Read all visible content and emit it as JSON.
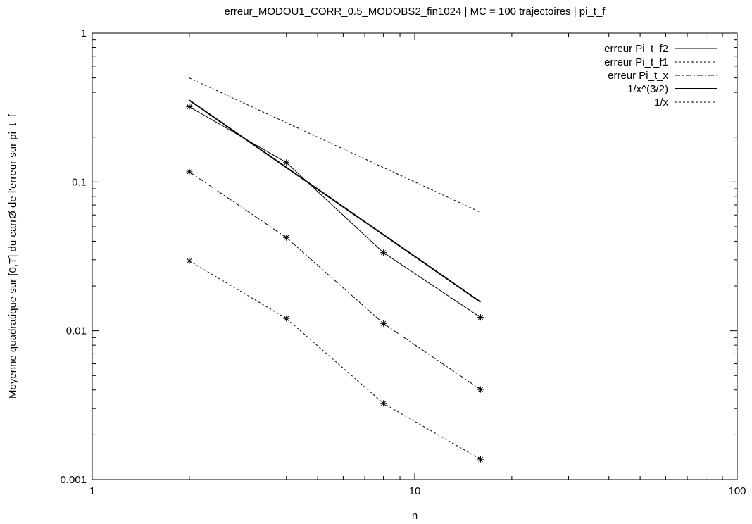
{
  "chart_data": {
    "type": "line",
    "title": "erreur_MODOU1_CORR_0.5_MODOBS2_fin1024 | MC = 100 trajectoires | pi_t_f",
    "xlabel": "n",
    "ylabel": "Moyenne quadratique sur [0,T] du carrØ de l'erreur sur pi_t_f",
    "xscale": "log",
    "yscale": "log",
    "xlim": [
      1,
      100
    ],
    "ylim": [
      0.001,
      1
    ],
    "xticks": [
      {
        "value": 1,
        "label": "1"
      },
      {
        "value": 10,
        "label": "10"
      },
      {
        "value": 100,
        "label": "100"
      }
    ],
    "yticks": [
      {
        "value": 0.001,
        "label": "0.001"
      },
      {
        "value": 0.01,
        "label": "0.01"
      },
      {
        "value": 0.1,
        "label": "0.1"
      },
      {
        "value": 1,
        "label": "1"
      }
    ],
    "grid": false,
    "legend_position": "top-right",
    "series": [
      {
        "name": "erreur Pi_t_f2",
        "style": "solid-thin",
        "markers": true,
        "x": [
          2,
          4,
          8,
          16
        ],
        "y": [
          0.32,
          0.135,
          0.0335,
          0.0123
        ]
      },
      {
        "name": "erreur Pi_t_f1",
        "style": "dotted",
        "markers": true,
        "x": [
          2,
          4,
          8,
          16
        ],
        "y": [
          0.0295,
          0.0121,
          0.00325,
          0.00137
        ]
      },
      {
        "name": "erreur Pi_t_x",
        "style": "dash-dot",
        "markers": true,
        "x": [
          2,
          4,
          8,
          16
        ],
        "y": [
          0.117,
          0.0423,
          0.0112,
          0.00403
        ]
      },
      {
        "name": "1/x^(3/2)",
        "style": "solid-thick",
        "markers": false,
        "x": [
          2,
          4,
          8,
          16
        ],
        "y": [
          0.354,
          0.125,
          0.0442,
          0.0156
        ]
      },
      {
        "name": "1/x",
        "style": "dotted",
        "markers": false,
        "x": [
          2,
          4,
          8,
          16
        ],
        "y": [
          0.5,
          0.25,
          0.125,
          0.0625
        ]
      }
    ]
  }
}
